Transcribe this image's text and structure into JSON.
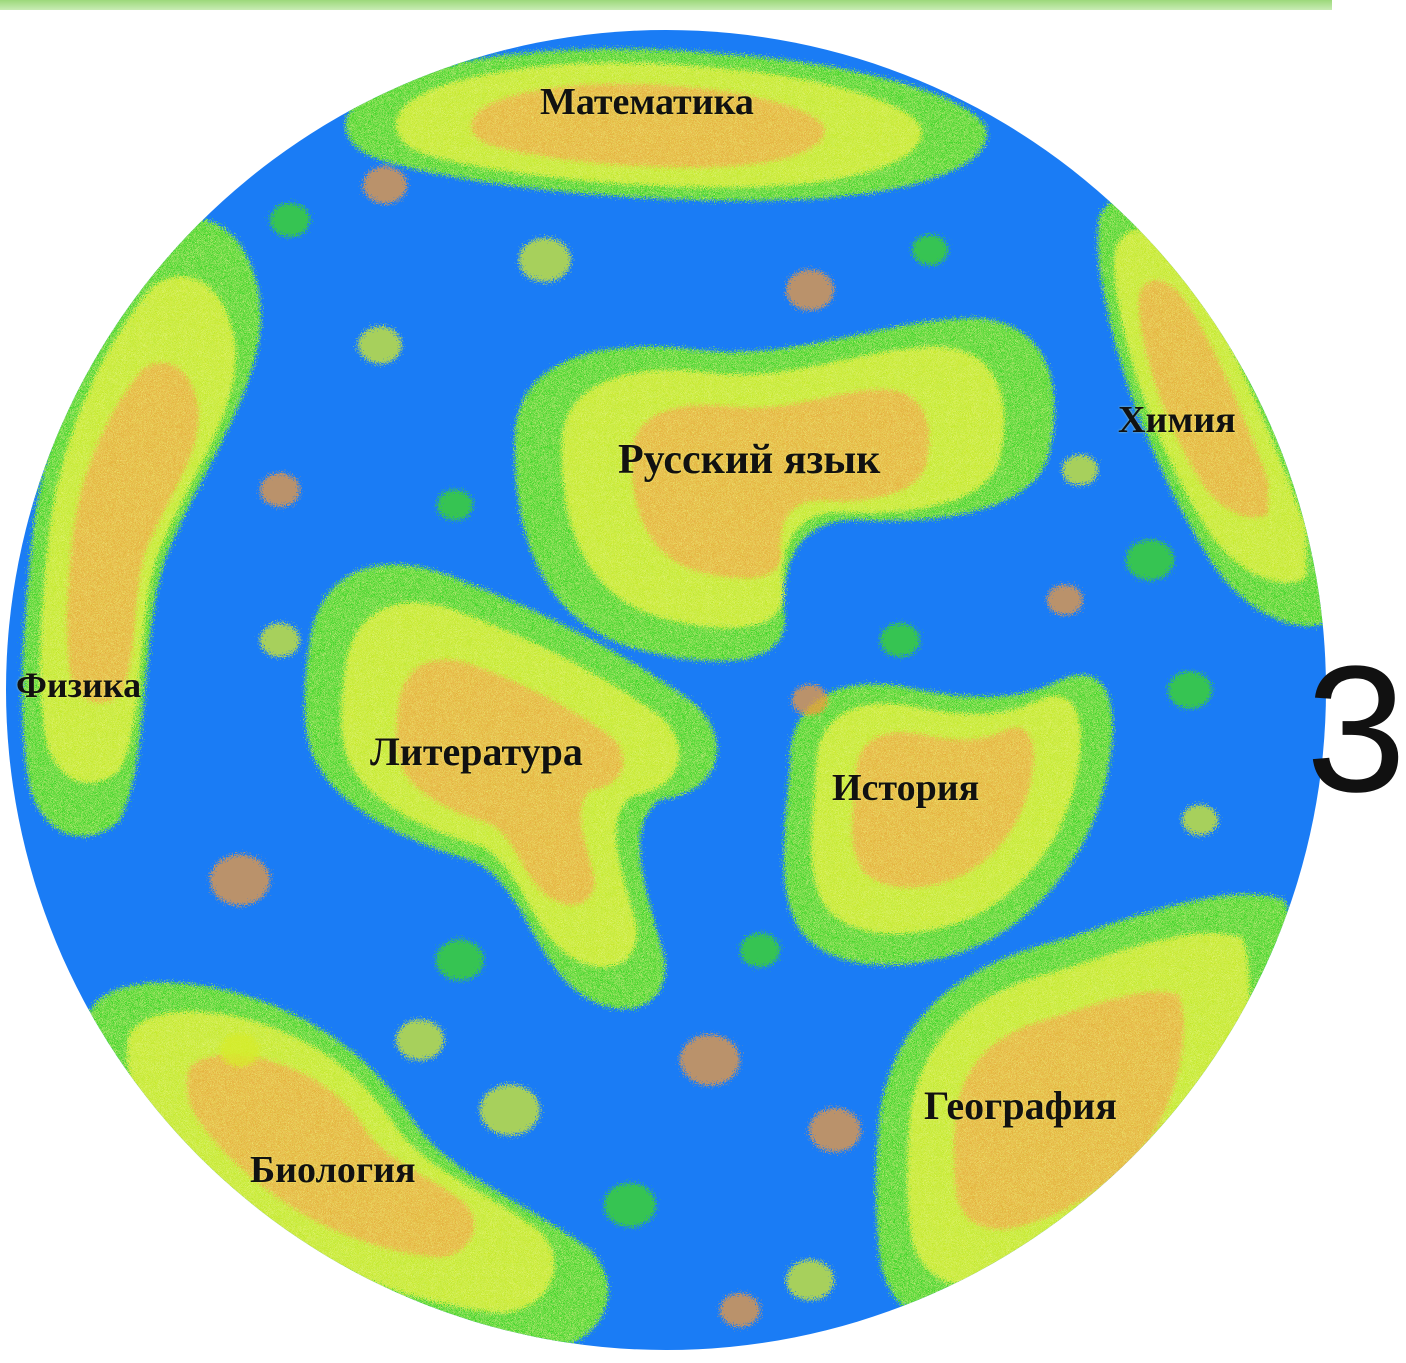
{
  "colors": {
    "ocean": "#1a7cf5",
    "land_outer": "#3fdc1e",
    "land_mid": "#d6ec2a",
    "land_core": "#f09a3c",
    "accent_top": "#9cd87a"
  },
  "edge_glyph": "3",
  "map": {
    "labels": {
      "mathematics": "Математика",
      "chemistry": "Химия",
      "russian": "Русский язык",
      "physics": "Физика",
      "literature": "Литература",
      "history": "История",
      "geography": "География",
      "biology": "Биология"
    }
  }
}
